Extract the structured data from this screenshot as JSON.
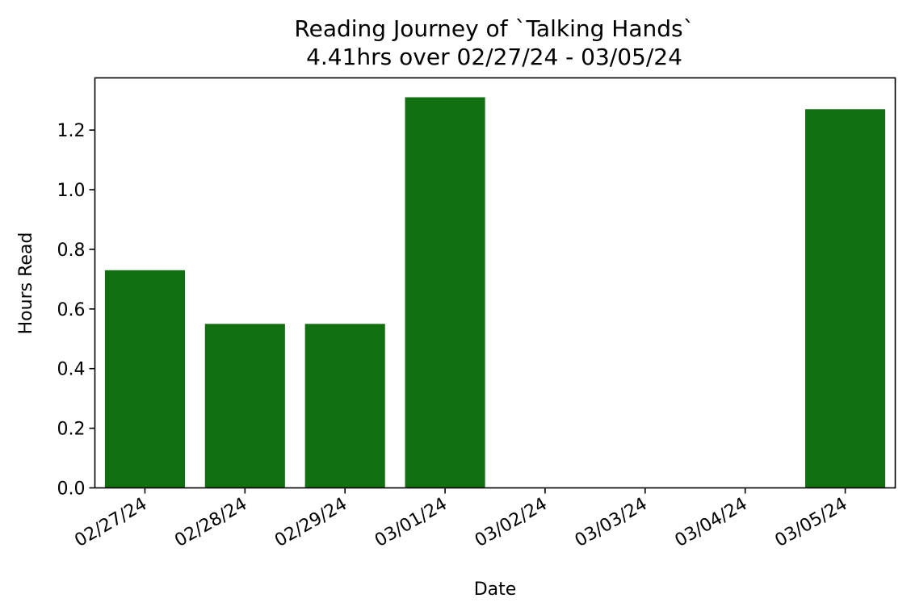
{
  "chart_data": {
    "type": "bar",
    "title": "Reading Journey of `Talking Hands`",
    "subtitle": "4.41hrs over 02/27/24 - 03/05/24",
    "xlabel": "Date",
    "ylabel": "Hours Read",
    "categories": [
      "02/27/24",
      "02/28/24",
      "02/29/24",
      "03/01/24",
      "03/02/24",
      "03/03/24",
      "03/04/24",
      "03/05/24"
    ],
    "values": [
      0.73,
      0.55,
      0.55,
      1.31,
      0,
      0,
      0,
      1.27
    ],
    "ylim": [
      0,
      1.375
    ],
    "yticks": [
      0.0,
      0.2,
      0.4,
      0.6,
      0.8,
      1.0,
      1.2
    ],
    "ytick_labels": [
      "0.0",
      "0.2",
      "0.4",
      "0.6",
      "0.8",
      "1.0",
      "1.2"
    ],
    "bar_color": "#107010",
    "grid": false,
    "legend": "none"
  }
}
